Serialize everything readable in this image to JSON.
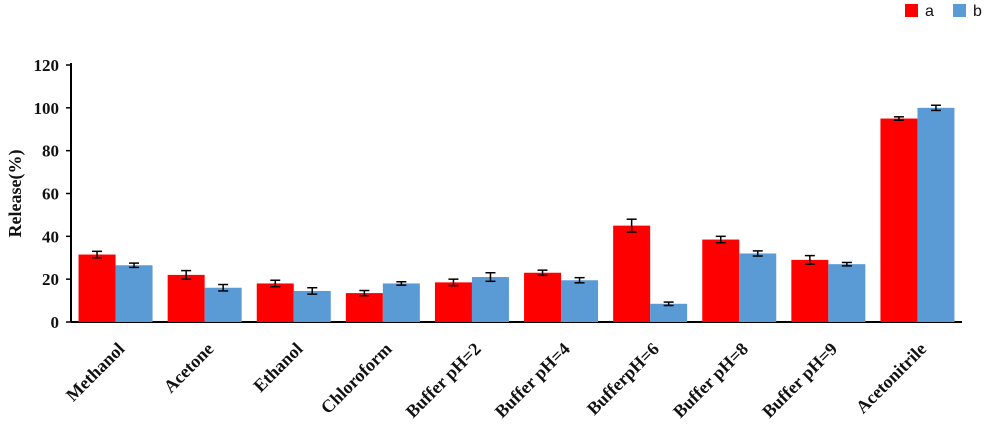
{
  "chart_data": {
    "type": "bar",
    "title": "",
    "xlabel": "",
    "ylabel": "Release(%)",
    "ylim": [
      0,
      120
    ],
    "yticks": [
      0,
      20,
      40,
      60,
      80,
      100,
      120
    ],
    "grid": false,
    "legend_position": "top-right",
    "categories": [
      "Methanol",
      "Acetone",
      "Ethanol",
      "Chloroform",
      "Buffer pH=2",
      "Buffer pH=4",
      "BufferpH=6",
      "Buffer pH=8",
      "Buffer pH=9",
      "Acetonitrile"
    ],
    "series": [
      {
        "name": "a",
        "color": "#ff0000",
        "values": [
          31.5,
          22,
          18,
          13.5,
          18.5,
          23,
          45,
          38.5,
          29,
          95
        ],
        "errors": [
          1.5,
          2,
          1.5,
          1.2,
          1.5,
          1.2,
          3,
          1.5,
          2,
          0.8
        ]
      },
      {
        "name": "b",
        "color": "#5b9bd5",
        "values": [
          26.5,
          16,
          14.5,
          18,
          21,
          19.5,
          8.5,
          32,
          27,
          100
        ],
        "errors": [
          1,
          1.5,
          1.5,
          0.8,
          2,
          1.2,
          0.8,
          1.2,
          0.8,
          1.2
        ]
      }
    ]
  }
}
